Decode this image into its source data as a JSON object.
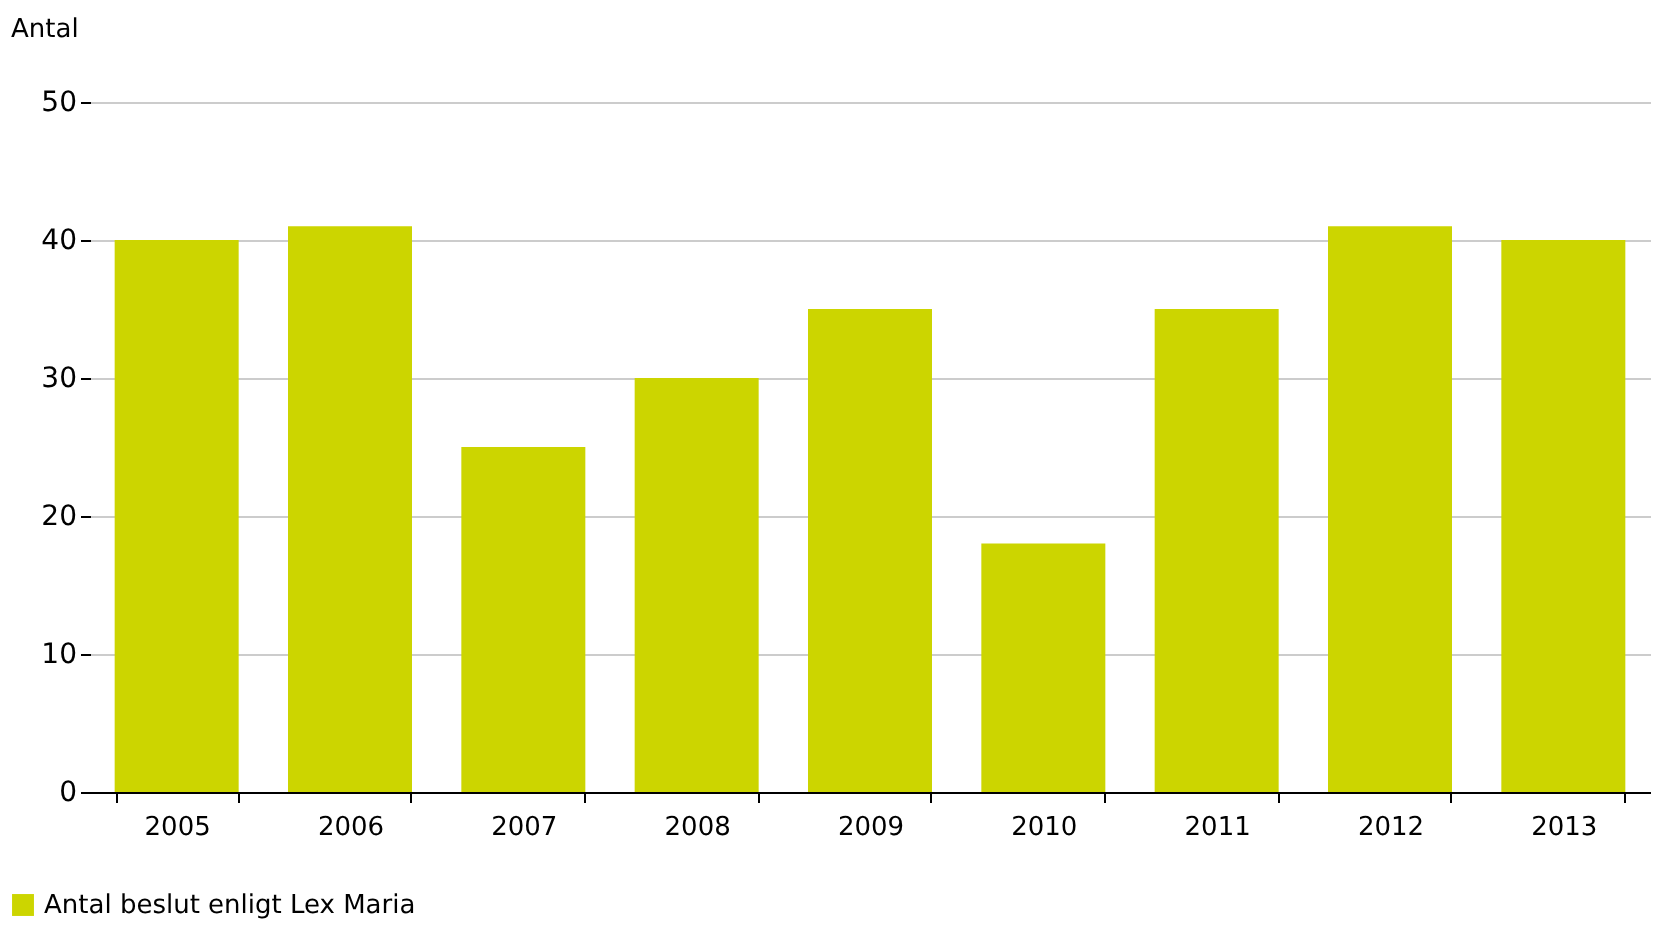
{
  "chart_data": {
    "type": "bar",
    "ylabel": "Antal",
    "categories": [
      "2005",
      "2006",
      "2007",
      "2008",
      "2009",
      "2010",
      "2011",
      "2012",
      "2013"
    ],
    "series": [
      {
        "name": "Antal beslut enligt Lex Maria",
        "color": "#ccd500",
        "values": [
          40,
          41,
          25,
          30,
          35,
          18,
          35,
          41,
          40
        ]
      }
    ],
    "ylim": [
      0,
      50
    ],
    "yticks": [
      0,
      10,
      20,
      30,
      40,
      50
    ],
    "grid": "y",
    "legend": "bottom left"
  }
}
